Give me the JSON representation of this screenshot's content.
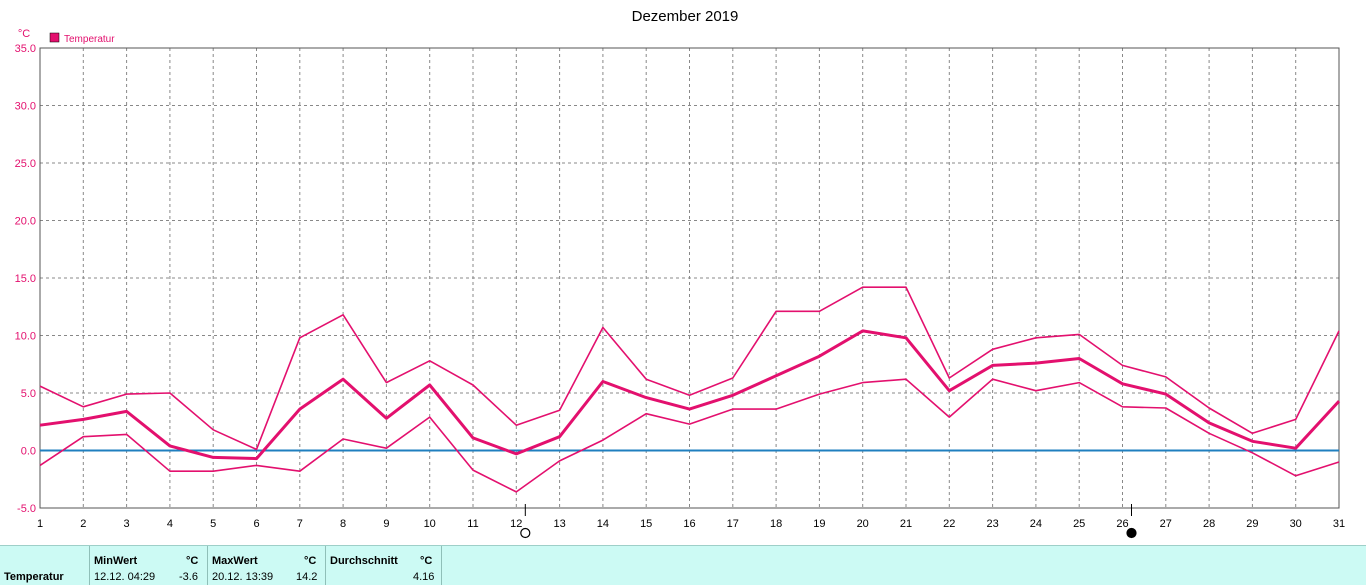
{
  "chart_data": {
    "type": "line",
    "title": "Dezember 2019",
    "ylabel": "°C",
    "ylim": [
      -5,
      35
    ],
    "y_ticks": [
      "-5.0",
      "0.0",
      "5.0",
      "10.0",
      "15.0",
      "20.0",
      "25.0",
      "30.0",
      "35.0"
    ],
    "x": [
      1,
      2,
      3,
      4,
      5,
      6,
      7,
      8,
      9,
      10,
      11,
      12,
      13,
      14,
      15,
      16,
      17,
      18,
      19,
      20,
      21,
      22,
      23,
      24,
      25,
      26,
      27,
      28,
      29,
      30,
      31
    ],
    "x_labels": [
      "1",
      "2",
      "3",
      "4",
      "5",
      "6",
      "7",
      "8",
      "9",
      "10",
      "11",
      "12",
      "13",
      "14",
      "15",
      "16",
      "17",
      "18",
      "19",
      "20",
      "21",
      "22",
      "23",
      "24",
      "25",
      "26",
      "27",
      "28",
      "29",
      "30",
      "31"
    ],
    "legend": {
      "label": "Temperatur",
      "position": "top-left"
    },
    "grid": true,
    "reference_line": 0,
    "series": [
      {
        "name": "Temperatur",
        "values": [
          5.6,
          3.8,
          4.9,
          5.0,
          1.8,
          0.1,
          9.8,
          11.8,
          5.9,
          7.8,
          5.7,
          2.2,
          3.5,
          10.7,
          6.2,
          4.8,
          6.3,
          12.1,
          12.1,
          14.2,
          14.2,
          6.3,
          8.8,
          9.8,
          10.1,
          7.4,
          6.4,
          3.7,
          1.5,
          2.7,
          10.4
        ]
      },
      {
        "name": "Temperatur",
        "values": [
          2.2,
          2.7,
          3.4,
          0.4,
          -0.6,
          -0.7,
          3.6,
          6.2,
          2.8,
          5.7,
          1.1,
          -0.3,
          1.2,
          6.0,
          4.6,
          3.6,
          4.8,
          6.5,
          8.2,
          10.4,
          9.8,
          5.2,
          7.4,
          7.6,
          8.0,
          5.8,
          4.9,
          2.4,
          0.8,
          0.2,
          4.3
        ]
      },
      {
        "name": "Temperatur",
        "values": [
          -1.3,
          1.2,
          1.4,
          -1.8,
          -1.8,
          -1.3,
          -1.8,
          1.0,
          0.2,
          2.9,
          -1.7,
          -3.6,
          -0.9,
          0.9,
          3.2,
          2.3,
          3.6,
          3.6,
          4.9,
          5.9,
          6.2,
          2.9,
          6.2,
          5.2,
          5.9,
          3.8,
          3.7,
          1.5,
          -0.2,
          -2.2,
          -1.0
        ]
      }
    ],
    "colors": {
      "series": "#e3106e",
      "zero_line": "#1f7fbf",
      "grid": "#888888",
      "accent": "#e3106e"
    },
    "moon_markers": [
      {
        "x": 12,
        "icon": "full-moon-icon"
      },
      {
        "x": 26,
        "icon": "new-moon-icon"
      }
    ]
  },
  "stats": {
    "row_label": "Temperatur",
    "min_label": "MinWert",
    "min_unit": "°C",
    "min_time": "12.12.  04:29",
    "min_value": "-3.6",
    "max_label": "MaxWert",
    "max_unit": "°C",
    "max_time": "20.12.  13:39",
    "max_value": "14.2",
    "avg_label": "Durchschnitt",
    "avg_unit": "°C",
    "avg_value": "4.16"
  }
}
